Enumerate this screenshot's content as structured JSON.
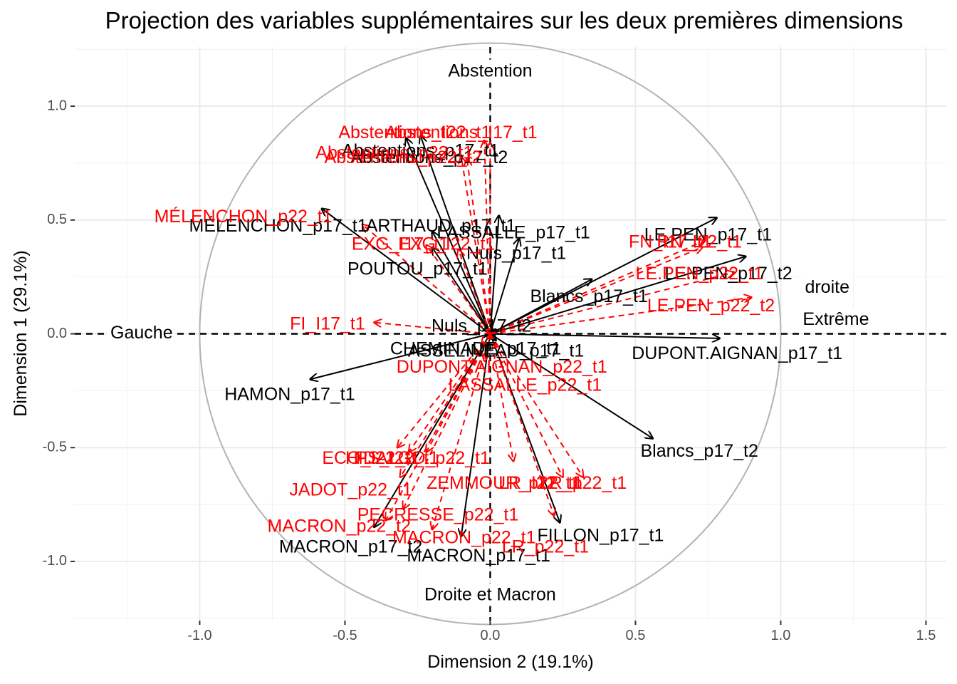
{
  "chart_data": {
    "type": "scatter",
    "title": "Projection des variables supplémentaires sur les deux premières dimensions",
    "xlabel": "Dimension 2 (19.1%)",
    "ylabel": "Dimension 1 (29.1%)",
    "xlim": [
      -1.43,
      1.57
    ],
    "ylim": [
      1.26,
      -1.26
    ],
    "y_reversed": true,
    "xticks": [
      -1.0,
      -0.5,
      0.0,
      0.5,
      1.0,
      1.5
    ],
    "xtick_labels": [
      "-1.0",
      "-0.5",
      "0.0",
      "0.5",
      "1.0",
      "1.5"
    ],
    "yticks": [
      -1.0,
      -0.5,
      0.0,
      0.5,
      1.0
    ],
    "ytick_labels": [
      "-1.0",
      "-0.5",
      "0.0",
      "0.5",
      "1.0"
    ],
    "grid": true,
    "unit_circle": true,
    "reference_lines": {
      "x": 0,
      "y": 0,
      "style": "dashed"
    },
    "annotations": [
      {
        "text": "Droite et Macron",
        "x": 0.0,
        "y": -1.15
      },
      {
        "text": "Gauche",
        "x": -1.2,
        "y": 0.0
      },
      {
        "text": "Extrême",
        "x": 1.19,
        "y": 0.06
      },
      {
        "text": "droite",
        "x": 1.16,
        "y": 0.2
      },
      {
        "text": "Abstention",
        "x": 0.0,
        "y": 1.15
      }
    ],
    "series": [
      {
        "name": "",
        "color": "#000000",
        "linestyle": "solid",
        "points": [
          {
            "label": "MACRON_p17_t2",
            "x": -0.4,
            "y": -0.85,
            "lx": -0.48,
            "ly": -0.94
          },
          {
            "label": "MACRON_p17_t1",
            "x": -0.1,
            "y": -0.89,
            "lx": -0.04,
            "ly": -0.98
          },
          {
            "label": "FILLON_p17_t1",
            "x": 0.24,
            "y": -0.83,
            "lx": 0.38,
            "ly": -0.89
          },
          {
            "label": "Blancs_p17_t2",
            "x": 0.56,
            "y": -0.46,
            "lx": 0.72,
            "ly": -0.52
          },
          {
            "label": "HAMON_p17_t1",
            "x": -0.62,
            "y": -0.2,
            "lx": -0.69,
            "ly": -0.27
          },
          {
            "label": "ASSELINEAU_p17_t1",
            "x": 0.02,
            "y": -0.03,
            "lx": 0.02,
            "ly": -0.08
          },
          {
            "label": "CHEMINADE_p17_t1",
            "x": 0.0,
            "y": 0.0,
            "lx": -0.05,
            "ly": -0.07
          },
          {
            "label": "DUPONT.AIGNAN_p17_t1",
            "x": 0.79,
            "y": -0.02,
            "lx": 0.85,
            "ly": -0.09
          },
          {
            "label": "Nuls_p17_t2",
            "x": 0.02,
            "y": 0.02,
            "lx": -0.03,
            "ly": 0.03
          },
          {
            "label": "Blancs_p17_t1",
            "x": 0.35,
            "y": 0.24,
            "lx": 0.34,
            "ly": 0.16
          },
          {
            "label": "LE.PEN_p17_t2",
            "x": 0.88,
            "y": 0.34,
            "lx": 0.82,
            "ly": 0.26
          },
          {
            "label": "LE.PEN_p17_t1",
            "x": 0.78,
            "y": 0.51,
            "lx": 0.75,
            "ly": 0.43
          },
          {
            "label": "POUTOU_p17_t1",
            "x": -0.2,
            "y": 0.38,
            "lx": -0.25,
            "ly": 0.28
          },
          {
            "label": "Nuls_p17_t1",
            "x": 0.1,
            "y": 0.42,
            "lx": 0.09,
            "ly": 0.35
          },
          {
            "label": "LASSALLE_p17_t1",
            "x": 0.03,
            "y": 0.52,
            "lx": 0.08,
            "ly": 0.44
          },
          {
            "label": "MÉLENCHON_p17_t1",
            "x": -0.58,
            "y": 0.55,
            "lx": -0.73,
            "ly": 0.47
          },
          {
            "label": "ARTHAUD_p17_t1",
            "x": -0.2,
            "y": 0.45,
            "lx": -0.17,
            "ly": 0.47
          },
          {
            "label": "Abstentions_p17_t1",
            "x": -0.24,
            "y": 0.87,
            "lx": -0.24,
            "ly": 0.8
          },
          {
            "label": "Abstentions_p17_t2",
            "x": -0.29,
            "y": 0.86,
            "lx": -0.21,
            "ly": 0.77
          }
        ]
      },
      {
        "name": "",
        "color": "#ff0000",
        "linestyle": "dashed",
        "points": [
          {
            "label": "MACRON_p22_t2",
            "x": -0.36,
            "y": -0.82,
            "lx": -0.52,
            "ly": -0.85
          },
          {
            "label": "MACRON_p22_t1",
            "x": -0.2,
            "y": -0.86,
            "lx": -0.09,
            "ly": -0.9
          },
          {
            "label": "PECRESSE_p22_t1",
            "x": -0.3,
            "y": -0.77,
            "lx": -0.18,
            "ly": -0.8
          },
          {
            "label": "LR_p22_t1",
            "x": 0.22,
            "y": -0.8,
            "lx": 0.19,
            "ly": -0.94
          },
          {
            "label": "JADOT_p22_t1",
            "x": -0.31,
            "y": -0.63,
            "lx": -0.48,
            "ly": -0.69
          },
          {
            "label": "ECO_I22_t1",
            "x": -0.28,
            "y": -0.52,
            "lx": -0.41,
            "ly": -0.55
          },
          {
            "label": "PS_I22_t1",
            "x": -0.32,
            "y": -0.5,
            "lx": -0.32,
            "ly": -0.55
          },
          {
            "label": "HIDALGO_p22_t1",
            "x": -0.22,
            "y": -0.52,
            "lx": -0.25,
            "ly": -0.55
          },
          {
            "label": "ZEMMOUR_p22_t1",
            "x": 0.08,
            "y": -0.56,
            "lx": 0.05,
            "ly": -0.66
          },
          {
            "label": "LR_I22_t1",
            "x": 0.25,
            "y": -0.63,
            "lx": 0.17,
            "ly": -0.66
          },
          {
            "label": "LR_p22_t1",
            "x": 0.32,
            "y": -0.63,
            "lx": 0.32,
            "ly": -0.66
          },
          {
            "label": "LASSALLE_p22_t1",
            "x": -0.02,
            "y": -0.12,
            "lx": 0.12,
            "ly": -0.23
          },
          {
            "label": "DUPONT.AIGNAN_p22_t1",
            "x": -0.03,
            "y": -0.05,
            "lx": 0.04,
            "ly": -0.15
          },
          {
            "label": "FI_I17_t1",
            "x": -0.4,
            "y": 0.05,
            "lx": -0.56,
            "ly": 0.04
          },
          {
            "label": "LE.PEN_p22_t2",
            "x": 0.9,
            "y": 0.16,
            "lx": 0.76,
            "ly": 0.12
          },
          {
            "label": "LE.PEN_p22_t1",
            "x": 0.84,
            "y": 0.27,
            "lx": 0.72,
            "ly": 0.26
          },
          {
            "label": "FN_I17_t1",
            "x": 0.74,
            "y": 0.41,
            "lx": 0.62,
            "ly": 0.4
          },
          {
            "label": "RN_I22_t1",
            "x": 0.73,
            "y": 0.38,
            "lx": 0.72,
            "ly": 0.4
          },
          {
            "label": "EXG_I17_t1",
            "x": -0.22,
            "y": 0.39,
            "lx": -0.31,
            "ly": 0.39
          },
          {
            "label": "EXG_I22_t1",
            "x": -0.11,
            "y": 0.37,
            "lx": -0.15,
            "ly": 0.39
          },
          {
            "label": "MÉLENCHON_p22_t1",
            "x": -0.44,
            "y": 0.48,
            "lx": -0.85,
            "ly": 0.51
          },
          {
            "label": "Abstentions_p22_t1",
            "x": -0.1,
            "y": 0.78,
            "lx": -0.33,
            "ly": 0.79
          },
          {
            "label": "Abstentions_p22_t2",
            "x": -0.08,
            "y": 0.77,
            "lx": -0.3,
            "ly": 0.77
          },
          {
            "label": "Abstentions_I22_t1",
            "x": 0.0,
            "y": 0.84,
            "lx": -0.26,
            "ly": 0.88
          },
          {
            "label": "Abstentions_I17_t1",
            "x": -0.02,
            "y": 0.85,
            "lx": -0.1,
            "ly": 0.88
          }
        ]
      }
    ]
  }
}
